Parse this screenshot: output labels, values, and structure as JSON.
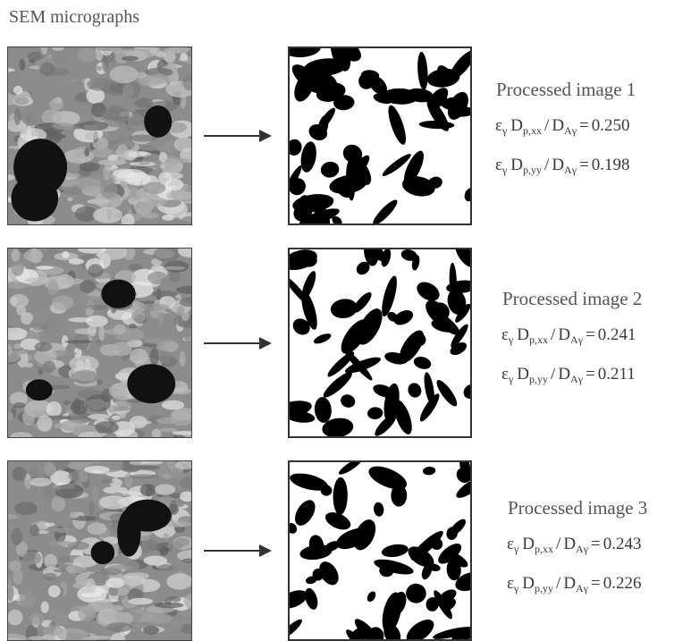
{
  "header": {
    "title": "SEM micrographs"
  },
  "rows": [
    {
      "label": "Processed image 1",
      "lines": [
        {
          "symbol": "ε",
          "symbol_sub": "γ",
          "numerator": "D",
          "numerator_sub": "p,xx",
          "divider": "/",
          "denominator": "D",
          "denominator_sub": "Aγ",
          "equals": "=",
          "value": "0.250"
        },
        {
          "symbol": "ε",
          "symbol_sub": "γ",
          "numerator": "D",
          "numerator_sub": "p,yy",
          "divider": "/",
          "denominator": "D",
          "denominator_sub": "Aγ",
          "equals": "=",
          "value": "0.198"
        }
      ]
    },
    {
      "label": "Processed image 2",
      "lines": [
        {
          "symbol": "ε",
          "symbol_sub": "γ",
          "numerator": "D",
          "numerator_sub": "p,xx",
          "divider": "/",
          "denominator": "D",
          "denominator_sub": "Aγ",
          "equals": "=",
          "value": "0.241"
        },
        {
          "symbol": "ε",
          "symbol_sub": "γ",
          "numerator": "D",
          "numerator_sub": "p,yy",
          "divider": "/",
          "denominator": "D",
          "denominator_sub": "Aγ",
          "equals": "=",
          "value": "0.211"
        }
      ]
    },
    {
      "label": "Processed image 3",
      "lines": [
        {
          "symbol": "ε",
          "symbol_sub": "γ",
          "numerator": "D",
          "numerator_sub": "p,xx",
          "divider": "/",
          "denominator": "D",
          "denominator_sub": "Aγ",
          "equals": "=",
          "value": "0.243"
        },
        {
          "symbol": "ε",
          "symbol_sub": "γ",
          "numerator": "D",
          "numerator_sub": "p,yy",
          "divider": "/",
          "denominator": "D",
          "denominator_sub": "Aγ",
          "equals": "=",
          "value": "0.226"
        }
      ]
    }
  ]
}
